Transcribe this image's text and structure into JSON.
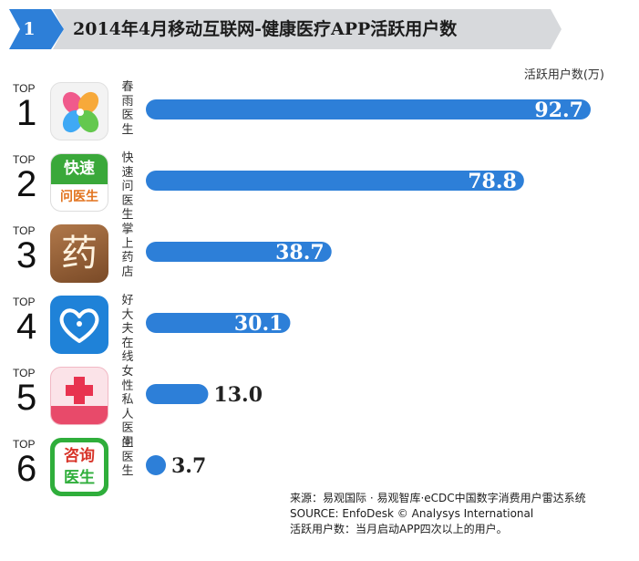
{
  "header": {
    "badge": "1",
    "title": "2014年4月移动互联网-健康医疗APP活跃用户数"
  },
  "chart_data": {
    "type": "bar",
    "orientation": "horizontal",
    "unit_label": "活跃用户数(万)",
    "categories": [
      "春雨医生",
      "快速问医生",
      "掌上药店",
      "好大夫在线",
      "女性私人医生",
      "问医生"
    ],
    "values": [
      92.7,
      78.8,
      38.7,
      30.1,
      13.0,
      3.7
    ],
    "value_labels": [
      "92.7",
      "78.8",
      "38.7",
      "30.1",
      "13.0",
      "3.7"
    ],
    "ranks": [
      "1",
      "2",
      "3",
      "4",
      "5",
      "6"
    ],
    "rank_prefix": "TOP",
    "xlim": [
      0,
      92.7
    ],
    "bar_color": "#2d7fd8"
  },
  "icons": {
    "快速问医生": {
      "line1": "快速",
      "line2": "问医生"
    },
    "掌上药店": {
      "glyph": "药"
    },
    "问医生": {
      "line1": "咨询",
      "line2": "医生"
    }
  },
  "colors": {
    "accent": "#2d7fd8",
    "header_band": "#d7d9dc",
    "badge": "#2d7fd8"
  },
  "footer": {
    "source_cn": "来源：易观国际 · 易观智库·eCDC中国数字消费用户雷达系统",
    "source_en": "SOURCE: EnfoDesk © Analysys International",
    "definition": "活跃用户数：当月启动APP四次以上的用户。"
  }
}
